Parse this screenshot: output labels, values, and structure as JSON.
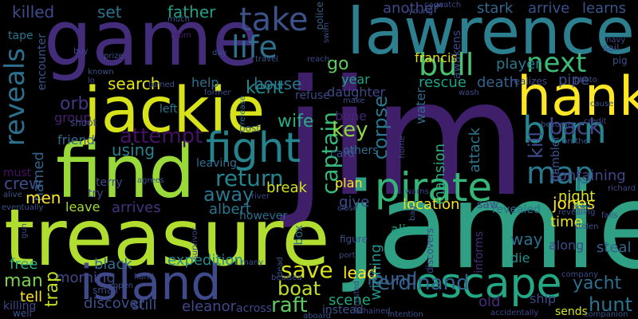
{
  "wordcloud": {
    "background": "#000000",
    "words": [
      {
        "text": "jim",
        "color": "#3f1e6a"
      },
      {
        "text": "jamie",
        "color": "#2fa083"
      },
      {
        "text": "treasure",
        "color": "#b0dd2f"
      },
      {
        "text": "game",
        "color": "#432c7a"
      },
      {
        "text": "lawrence",
        "color": "#2c7f8e"
      },
      {
        "text": "find",
        "color": "#9ad93a"
      },
      {
        "text": "jackie",
        "color": "#d8e219"
      },
      {
        "text": "hank",
        "color": "#fde725"
      },
      {
        "text": "island",
        "color": "#3f4a8a"
      },
      {
        "text": "pirate",
        "color": "#34b679"
      },
      {
        "text": "escape",
        "color": "#22a884"
      },
      {
        "text": "fight",
        "color": "#25838e"
      },
      {
        "text": "burn",
        "color": "#24868e"
      },
      {
        "text": "take",
        "color": "#3b528b"
      },
      {
        "text": "life",
        "color": "#2e6f8e"
      },
      {
        "text": "bull",
        "color": "#4ac16d"
      },
      {
        "text": "reveals",
        "color": "#2d708e"
      },
      {
        "text": "next",
        "color": "#3bbb75"
      },
      {
        "text": "map",
        "color": "#2a788e"
      },
      {
        "text": "back",
        "color": "#3f4788"
      },
      {
        "text": "attempt",
        "color": "#471063"
      },
      {
        "text": "return",
        "color": "#25848e"
      },
      {
        "text": "kill",
        "color": "#3e4a89"
      },
      {
        "text": "crew",
        "color": "#3c4f8a"
      },
      {
        "text": "captain",
        "color": "#35b779"
      },
      {
        "text": "corpse",
        "color": "#2a768e"
      },
      {
        "text": "raft",
        "color": "#5ec962"
      },
      {
        "text": "man",
        "color": "#7ad151"
      },
      {
        "text": "save",
        "color": "#d8e219"
      },
      {
        "text": "boat",
        "color": "#bddf26"
      },
      {
        "text": "ferdinand",
        "color": "#33638d"
      },
      {
        "text": "found",
        "color": "#355f8d"
      },
      {
        "text": "hunt",
        "color": "#2c728e"
      },
      {
        "text": "yacht",
        "color": "#2e6e8e"
      },
      {
        "text": "killed",
        "color": "#3e4a89"
      },
      {
        "text": "set",
        "color": "#2c728e"
      },
      {
        "text": "father",
        "color": "#1fa187"
      },
      {
        "text": "another",
        "color": "#3f4889"
      },
      {
        "text": "stark",
        "color": "#31688e"
      },
      {
        "text": "arrive",
        "color": "#3b528b"
      },
      {
        "text": "learns",
        "color": "#39558c"
      },
      {
        "text": "search",
        "color": "#e5e419"
      },
      {
        "text": "kent",
        "color": "#228c8d"
      },
      {
        "text": "house",
        "color": "#2c728e"
      },
      {
        "text": "go",
        "color": "#5ec962"
      },
      {
        "text": "orb",
        "color": "#453781"
      },
      {
        "text": "using",
        "color": "#26828e"
      },
      {
        "text": "named",
        "color": "#33638d"
      },
      {
        "text": "key",
        "color": "#8fd744"
      },
      {
        "text": "bone",
        "color": "#482475"
      },
      {
        "text": "men",
        "color": "#fde725"
      },
      {
        "text": "away",
        "color": "#2b758e"
      },
      {
        "text": "wife",
        "color": "#26ad81"
      },
      {
        "text": "break",
        "color": "#d2e21b"
      },
      {
        "text": "rescue",
        "color": "#1fa188"
      },
      {
        "text": "death",
        "color": "#33638d"
      },
      {
        "text": "player",
        "color": "#2a788e"
      },
      {
        "text": "pipe",
        "color": "#3e4c8a"
      },
      {
        "text": "francis",
        "color": "#e2e418"
      },
      {
        "text": "year",
        "color": "#20a486"
      },
      {
        "text": "containing",
        "color": "#3f4788"
      },
      {
        "text": "jones",
        "color": "#fde725"
      },
      {
        "text": "night",
        "color": "#dde318"
      },
      {
        "text": "time",
        "color": "#e7e419"
      },
      {
        "text": "location",
        "color": "#f1e51d"
      },
      {
        "text": "give",
        "color": "#3e4989"
      },
      {
        "text": "albert",
        "color": "#2b748e"
      },
      {
        "text": "leave",
        "color": "#a0da39"
      },
      {
        "text": "arrives",
        "color": "#46327e"
      },
      {
        "text": "expedition",
        "color": "#238a8d"
      },
      {
        "text": "black",
        "color": "#2f6c8e"
      },
      {
        "text": "morning",
        "color": "#3f4889"
      },
      {
        "text": "trap",
        "color": "#bddf26"
      },
      {
        "text": "tell",
        "color": "#fde725"
      },
      {
        "text": "free",
        "color": "#27ad81"
      },
      {
        "text": "discover",
        "color": "#3c4f8a"
      },
      {
        "text": "still",
        "color": "#3c508b"
      },
      {
        "text": "eleanor",
        "color": "#3f4889"
      },
      {
        "text": "scene",
        "color": "#22a884"
      },
      {
        "text": "lead",
        "color": "#fde725"
      },
      {
        "text": "winning",
        "color": "#20928c"
      },
      {
        "text": "alison",
        "color": "#20a486"
      },
      {
        "text": "way",
        "color": "#2d708e"
      },
      {
        "text": "along",
        "color": "#3e4a89"
      },
      {
        "text": "steal",
        "color": "#33638d"
      },
      {
        "text": "die",
        "color": "#20928c"
      },
      {
        "text": "old",
        "color": "#472d7b"
      },
      {
        "text": "ship",
        "color": "#404688"
      },
      {
        "text": "sends",
        "color": "#d2e21b"
      },
      {
        "text": "attack",
        "color": "#2c738e"
      },
      {
        "text": "mansion",
        "color": "#29af7f"
      },
      {
        "text": "water",
        "color": "#31688e"
      },
      {
        "text": "friend",
        "color": "#31688e"
      },
      {
        "text": "group",
        "color": "#481f70"
      },
      {
        "text": "help",
        "color": "#2d708e"
      },
      {
        "text": "tape",
        "color": "#2a768e"
      },
      {
        "text": "encounter",
        "color": "#39568c"
      },
      {
        "text": "room",
        "color": "#48186a"
      },
      {
        "text": "police",
        "color": "#33638d"
      },
      {
        "text": "plan",
        "color": "#fde725"
      },
      {
        "text": "left",
        "color": "#2b758e"
      },
      {
        "text": "refuse",
        "color": "#3f4889"
      },
      {
        "text": "daughter",
        "color": "#3f4889"
      },
      {
        "text": "others",
        "color": "#2e6e8e"
      },
      {
        "text": "card",
        "color": "#3b528b"
      },
      {
        "text": "must",
        "color": "#471063"
      },
      {
        "text": "terry",
        "color": "#3e4c8a"
      },
      {
        "text": "try",
        "color": "#3f4889"
      },
      {
        "text": "leaving",
        "color": "#2d708e"
      },
      {
        "text": "however",
        "color": "#2f6c8e"
      },
      {
        "text": "box",
        "color": "#2d708e"
      },
      {
        "text": "figure",
        "color": "#3b528b"
      },
      {
        "text": "saw",
        "color": "#3e4c8a"
      },
      {
        "text": "revealed",
        "color": "#2d708e"
      },
      {
        "text": "informs",
        "color": "#472d7b"
      },
      {
        "text": "gambler",
        "color": "#3b528b"
      },
      {
        "text": "realizes",
        "color": "#3f4889"
      },
      {
        "text": "shoot",
        "color": "#3e4c8a"
      },
      {
        "text": "post",
        "color": "#33638d"
      },
      {
        "text": "make",
        "color": "#3e4c8a"
      },
      {
        "text": "release",
        "color": "#2d708e"
      },
      {
        "text": "travel",
        "color": "#3b528b"
      },
      {
        "text": "reach",
        "color": "#3f4889"
      },
      {
        "text": "sail",
        "color": "#3f4889"
      },
      {
        "text": "pig",
        "color": "#3b528b"
      },
      {
        "text": "prize",
        "color": "#3b528b"
      },
      {
        "text": "buy",
        "color": "#3f4889"
      },
      {
        "text": "turned",
        "color": "#3b528b"
      },
      {
        "text": "awakens",
        "color": "#3f4889"
      },
      {
        "text": "navy",
        "color": "#3f4889"
      },
      {
        "text": "cage",
        "color": "#3b528b"
      },
      {
        "text": "watch",
        "color": "#3f4889"
      },
      {
        "text": "young",
        "color": "#3f4889"
      },
      {
        "text": "photo",
        "color": "#3b528b"
      },
      {
        "text": "cause",
        "color": "#3b528b"
      },
      {
        "text": "credit",
        "color": "#3f4889"
      },
      {
        "text": "brother",
        "color": "#3b528b"
      },
      {
        "text": "become",
        "color": "#3f4889"
      },
      {
        "text": "richard",
        "color": "#3f4889"
      },
      {
        "text": "poker",
        "color": "#3b528b"
      },
      {
        "text": "revealing",
        "color": "#3f4889"
      },
      {
        "text": "stolen",
        "color": "#3b528b"
      },
      {
        "text": "company",
        "color": "#3f4889"
      },
      {
        "text": "companion",
        "color": "#3b528b"
      },
      {
        "text": "accidentally",
        "color": "#3f4889"
      },
      {
        "text": "intention",
        "color": "#3b528b"
      },
      {
        "text": "chained",
        "color": "#3f4889"
      },
      {
        "text": "instead",
        "color": "#3b528b"
      },
      {
        "text": "across",
        "color": "#3f4889"
      },
      {
        "text": "aboard",
        "color": "#3b528b"
      },
      {
        "text": "killing",
        "color": "#3f4889"
      },
      {
        "text": "well",
        "color": "#3b528b"
      },
      {
        "text": "small",
        "color": "#3f4889"
      },
      {
        "text": "open",
        "color": "#3b528b"
      },
      {
        "text": "hand",
        "color": "#3f4889"
      },
      {
        "text": "many",
        "color": "#3b528b"
      },
      {
        "text": "port",
        "color": "#3f4889"
      },
      {
        "text": "sea",
        "color": "#3b528b"
      },
      {
        "text": "bear",
        "color": "#3f4889"
      },
      {
        "text": "dead",
        "color": "#3b528b"
      },
      {
        "text": "arrested",
        "color": "#3f4889"
      },
      {
        "text": "close",
        "color": "#3b528b"
      },
      {
        "text": "river",
        "color": "#3f4889"
      },
      {
        "text": "alive",
        "color": "#3b528b"
      },
      {
        "text": "gun",
        "color": "#3f4889"
      },
      {
        "text": "eventually",
        "color": "#3b528b"
      },
      {
        "text": "survivor",
        "color": "#3f4889"
      },
      {
        "text": "agrees",
        "color": "#3b528b"
      },
      {
        "text": "home",
        "color": "#3f4889"
      },
      {
        "text": "known",
        "color": "#3b528b"
      },
      {
        "text": "former",
        "color": "#3f4889"
      },
      {
        "text": "day",
        "color": "#3b528b"
      },
      {
        "text": "wash",
        "color": "#3f4889"
      },
      {
        "text": "much",
        "color": "#3b528b"
      },
      {
        "text": "warns",
        "color": "#3f4889"
      },
      {
        "text": "bag",
        "color": "#3b528b"
      },
      {
        "text": "discovers",
        "color": "#3f4889"
      },
      {
        "text": "fails",
        "color": "#3b528b"
      },
      {
        "text": "lo",
        "color": "#3f4889"
      },
      {
        "text": "swim",
        "color": "#3b528b"
      }
    ]
  }
}
